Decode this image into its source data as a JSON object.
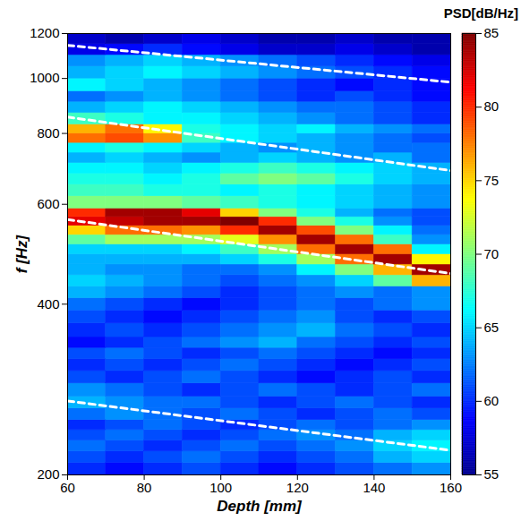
{
  "chart_data": {
    "type": "heatmap",
    "x_label": "Depth [mm]",
    "y_label": "f [Hz]",
    "xlim": [
      60,
      160
    ],
    "xticks": [
      60,
      80,
      100,
      120,
      140,
      160
    ],
    "ylim": [
      200,
      1200
    ],
    "yticks": [
      200,
      400,
      600,
      800,
      1000,
      1200
    ],
    "log": "y",
    "x_bins": [
      60,
      70,
      80,
      90,
      100,
      110,
      120,
      130,
      140,
      150,
      160
    ],
    "y_bins": [
      200,
      210,
      220,
      230,
      240,
      250,
      262,
      275,
      290,
      305,
      320,
      335,
      350,
      370,
      390,
      410,
      430,
      450,
      470,
      490,
      510,
      530,
      550,
      570,
      590,
      620,
      650,
      680,
      710,
      740,
      770,
      800,
      830,
      870,
      910,
      950,
      1000,
      1050,
      1100,
      1150,
      1200
    ],
    "cells": [
      [
        60,
        59,
        60,
        61,
        60,
        59,
        60,
        61,
        62,
        63
      ],
      [
        61,
        60,
        61,
        62,
        61,
        60,
        61,
        62,
        64,
        65
      ],
      [
        62,
        61,
        60,
        61,
        62,
        61,
        62,
        63,
        65,
        66
      ],
      [
        61,
        62,
        61,
        60,
        61,
        62,
        63,
        62,
        64,
        65
      ],
      [
        60,
        61,
        62,
        61,
        60,
        61,
        62,
        61,
        62,
        63
      ],
      [
        62,
        63,
        62,
        61,
        62,
        61,
        60,
        61,
        62,
        61
      ],
      [
        64,
        63,
        62,
        62,
        61,
        60,
        61,
        62,
        61,
        60
      ],
      [
        63,
        62,
        61,
        60,
        61,
        62,
        61,
        60,
        61,
        62
      ],
      [
        61,
        60,
        61,
        62,
        61,
        60,
        59,
        60,
        61,
        60
      ],
      [
        60,
        61,
        60,
        61,
        62,
        61,
        60,
        59,
        60,
        61
      ],
      [
        61,
        62,
        61,
        60,
        61,
        62,
        61,
        60,
        59,
        60
      ],
      [
        59,
        60,
        61,
        62,
        63,
        64,
        62,
        61,
        60,
        61
      ],
      [
        60,
        61,
        60,
        61,
        62,
        63,
        64,
        62,
        61,
        60
      ],
      [
        61,
        60,
        59,
        60,
        61,
        62,
        63,
        61,
        60,
        61
      ],
      [
        62,
        61,
        60,
        59,
        60,
        61,
        62,
        61,
        62,
        63
      ],
      [
        64,
        63,
        62,
        61,
        60,
        61,
        62,
        63,
        62,
        63
      ],
      [
        65,
        64,
        63,
        62,
        61,
        62,
        63,
        65,
        69,
        76
      ],
      [
        64,
        63,
        63,
        62,
        62,
        63,
        66,
        70,
        76,
        84
      ],
      [
        64,
        64,
        64,
        64,
        65,
        67,
        71,
        78,
        84,
        74
      ],
      [
        65,
        65,
        65,
        66,
        68,
        71,
        78,
        84,
        78,
        66
      ],
      [
        69,
        71,
        71,
        71,
        73,
        77,
        84,
        78,
        68,
        63
      ],
      [
        75,
        78,
        78,
        77,
        80,
        84,
        79,
        70,
        66,
        62
      ],
      [
        82,
        83,
        84,
        84,
        85,
        80,
        70,
        67,
        63,
        61
      ],
      [
        80,
        84,
        84,
        82,
        75,
        70,
        67,
        64,
        62,
        61
      ],
      [
        70,
        70,
        70,
        69,
        68,
        67,
        66,
        65,
        64,
        63
      ],
      [
        68,
        68,
        67,
        67,
        66,
        67,
        66,
        65,
        64,
        63
      ],
      [
        67,
        67,
        66,
        67,
        69,
        70,
        69,
        67,
        65,
        64
      ],
      [
        66,
        66,
        65,
        66,
        67,
        68,
        67,
        66,
        65,
        64
      ],
      [
        64,
        65,
        64,
        63,
        64,
        65,
        64,
        63,
        64,
        62
      ],
      [
        66,
        67,
        66,
        65,
        64,
        63,
        64,
        63,
        62,
        62
      ],
      [
        78,
        79,
        77,
        68,
        66,
        65,
        64,
        63,
        62,
        61
      ],
      [
        76,
        78,
        74,
        67,
        66,
        65,
        66,
        64,
        63,
        62
      ],
      [
        68,
        67,
        66,
        66,
        65,
        64,
        63,
        62,
        61,
        60
      ],
      [
        64,
        65,
        66,
        65,
        64,
        63,
        62,
        62,
        61,
        60
      ],
      [
        62,
        63,
        64,
        63,
        62,
        61,
        60,
        61,
        60,
        59
      ],
      [
        66,
        65,
        64,
        63,
        62,
        61,
        60,
        59,
        60,
        59
      ],
      [
        64,
        65,
        66,
        65,
        64,
        63,
        62,
        61,
        60,
        59
      ],
      [
        63,
        64,
        65,
        64,
        63,
        62,
        61,
        60,
        59,
        58
      ],
      [
        58,
        59,
        60,
        59,
        58,
        57,
        57,
        58,
        57,
        56
      ],
      [
        57,
        56,
        57,
        58,
        57,
        56,
        56,
        57,
        56,
        56
      ]
    ],
    "colorbar": {
      "label": "PSD[dB/Hz]",
      "range": [
        55,
        85
      ],
      "ticks": [
        55,
        60,
        65,
        70,
        75,
        80,
        85
      ]
    },
    "series": [
      {
        "type": "line",
        "color": "#ffffff",
        "line_style": "dashed",
        "x": [
          60,
          160
        ],
        "values": [
          1144,
          985
        ]
      },
      {
        "type": "line",
        "color": "#ffffff",
        "line_style": "dashed",
        "x": [
          60,
          160
        ],
        "values": [
          855,
          688
        ]
      },
      {
        "type": "line",
        "color": "#ffffff",
        "line_style": "dashed",
        "x": [
          60,
          160
        ],
        "values": [
          564,
          453
        ]
      },
      {
        "type": "line",
        "color": "#ffffff",
        "line_style": "dashed",
        "x": [
          60,
          160
        ],
        "values": [
          270,
          221
        ]
      }
    ]
  }
}
